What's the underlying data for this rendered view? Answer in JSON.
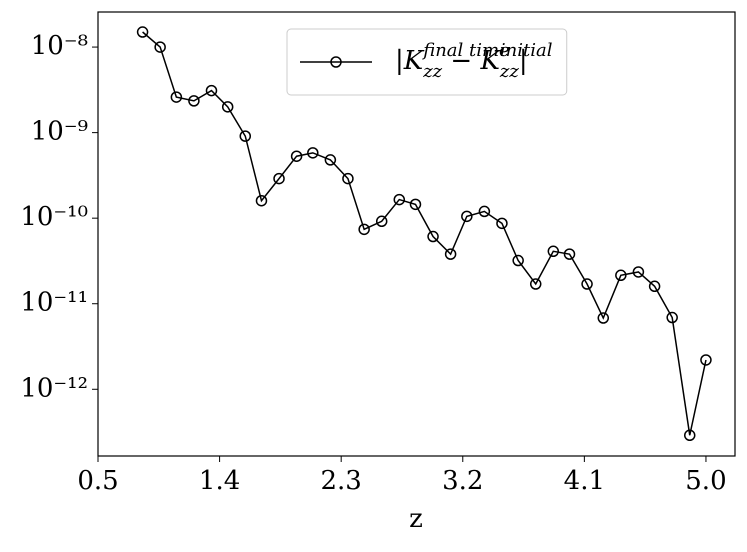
{
  "chart_data": {
    "type": "line",
    "xlabel": "z",
    "log_y": true,
    "legend": "upper right",
    "x": [
      0.83,
      0.96,
      1.08,
      1.21,
      1.34,
      1.46,
      1.59,
      1.71,
      1.84,
      1.97,
      2.09,
      2.22,
      2.35,
      2.47,
      2.6,
      2.73,
      2.85,
      2.98,
      3.11,
      3.23,
      3.36,
      3.49,
      3.61,
      3.74,
      3.87,
      3.99,
      4.12,
      4.24,
      4.37,
      4.5,
      4.62,
      4.75,
      4.88,
      5.0
    ],
    "series": [
      {
        "name": "|K^{final time}_{zz} − K^{initial}_{zz}|",
        "color": "#000000",
        "marker": "circle",
        "values": [
          1.5e-08,
          1e-08,
          2.6e-09,
          2.35e-09,
          3.1e-09,
          2e-09,
          9.1e-10,
          1.6e-10,
          2.9e-10,
          5.3e-10,
          5.8e-10,
          4.8e-10,
          2.9e-10,
          7.4e-11,
          9.2e-11,
          1.65e-10,
          1.45e-10,
          6.1e-11,
          3.8e-11,
          1.05e-10,
          1.2e-10,
          8.7e-11,
          3.2e-11,
          1.7e-11,
          4.1e-11,
          3.8e-11,
          1.7e-11,
          6.8e-12,
          2.15e-11,
          2.35e-11,
          1.6e-11,
          6.9e-12,
          2.9e-13,
          2.2e-12
        ]
      }
    ],
    "xlim": [
      0.5,
      5.215
    ],
    "xticks": [
      0.5,
      1.4,
      2.3,
      3.2,
      4.1,
      {
        "value": 5,
        "label": "5.0"
      }
    ],
    "ylim": [
      1.66e-13,
      2.57e-08
    ],
    "yticks": [
      {
        "value": 1e-08,
        "label": "10⁻⁸"
      },
      {
        "value": 1e-09,
        "label": "10⁻⁹"
      },
      {
        "value": 1e-10,
        "label": "10⁻¹⁰"
      },
      {
        "value": 1e-11,
        "label": "10⁻¹¹"
      },
      {
        "value": 1e-12,
        "label": "10⁻¹²"
      }
    ]
  }
}
